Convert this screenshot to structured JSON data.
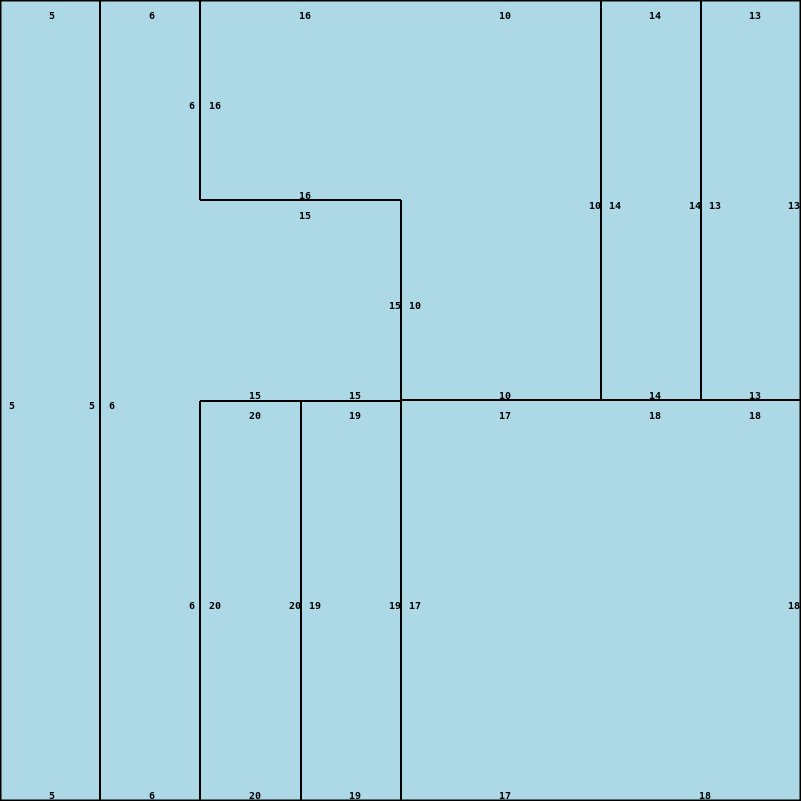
{
  "figure": {
    "background_color": "#ADD8E6",
    "edge_color": "#000000",
    "label_color": "#000000"
  },
  "regions": [
    {
      "id": "5",
      "labels": {
        "top": "5",
        "bottom": "5",
        "left": "5",
        "right": "5"
      }
    },
    {
      "id": "6",
      "labels": {
        "top": "6",
        "bottom": "6",
        "left": "6",
        "right_upper": "6",
        "right_lower": "6"
      }
    },
    {
      "id": "16",
      "labels": {
        "top": "16",
        "bottom": "16",
        "left": "16"
      }
    },
    {
      "id": "10",
      "labels": {
        "top": "10",
        "bottom": "10",
        "left": "10",
        "right": "10"
      }
    },
    {
      "id": "14",
      "labels": {
        "top": "14",
        "bottom": "14",
        "left": "14",
        "right": "14"
      }
    },
    {
      "id": "13",
      "labels": {
        "top": "13",
        "bottom": "13",
        "left": "13",
        "right": "13"
      }
    },
    {
      "id": "15",
      "labels": {
        "top": "15",
        "bottom_left": "15",
        "bottom_right": "15",
        "right": "15"
      }
    },
    {
      "id": "20",
      "labels": {
        "top": "20",
        "bottom": "20",
        "left": "20",
        "right": "20"
      }
    },
    {
      "id": "19",
      "labels": {
        "top": "19",
        "bottom": "19",
        "left": "19",
        "right": "19"
      }
    },
    {
      "id": "17",
      "labels": {
        "top": "17",
        "bottom": "17",
        "left": "17"
      }
    },
    {
      "id": "18",
      "labels": {
        "top_left": "18",
        "top_right": "18",
        "bottom": "18",
        "right": "18"
      }
    }
  ]
}
